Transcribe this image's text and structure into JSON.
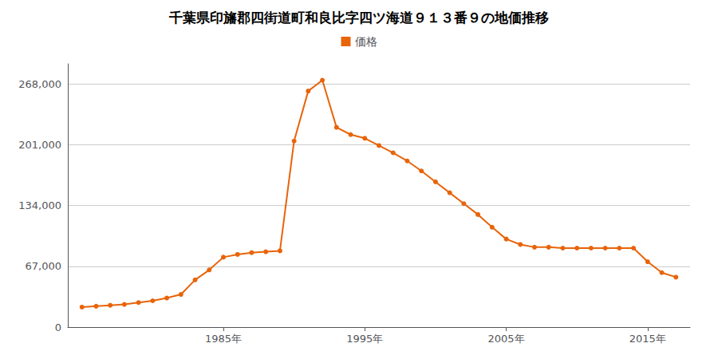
{
  "chart_data": {
    "type": "line",
    "title": "千葉県印旛郡四街道町和良比字四ツ海道９１３番９の地価推移",
    "x": [
      1975,
      1976,
      1977,
      1978,
      1979,
      1980,
      1981,
      1982,
      1983,
      1984,
      1985,
      1986,
      1987,
      1988,
      1989,
      1990,
      1991,
      1992,
      1993,
      1994,
      1995,
      1996,
      1997,
      1998,
      1999,
      2000,
      2001,
      2002,
      2003,
      2004,
      2005,
      2006,
      2007,
      2008,
      2009,
      2010,
      2011,
      2012,
      2013,
      2014,
      2015,
      2016,
      2017
    ],
    "series": [
      {
        "name": "価格",
        "color": "#e8640a",
        "marker": "circle",
        "values": [
          22000,
          23000,
          24000,
          25000,
          27000,
          29000,
          32000,
          36000,
          52000,
          63000,
          77000,
          80000,
          82000,
          83000,
          84000,
          205000,
          260000,
          272000,
          220000,
          212000,
          208000,
          200000,
          192000,
          183000,
          172000,
          160000,
          148000,
          136000,
          124000,
          110000,
          97000,
          91000,
          88000,
          88000,
          87000,
          87000,
          87000,
          87000,
          87000,
          87000,
          72000,
          60000,
          55000
        ]
      }
    ],
    "xlim": [
      1974,
      2018
    ],
    "xticks": [
      {
        "value": 1985,
        "label": "1985年"
      },
      {
        "value": 1995,
        "label": "1995年"
      },
      {
        "value": 2005,
        "label": "2005年"
      },
      {
        "value": 2015,
        "label": "2015年"
      }
    ],
    "ylim": [
      0,
      290000
    ],
    "yticks": [
      0,
      {
        "value": 67000,
        "label": "67,000"
      },
      {
        "value": 134000,
        "label": "134,000"
      },
      {
        "value": 201000,
        "label": "201,000"
      },
      {
        "value": 268000,
        "label": "268,000"
      }
    ],
    "grid": true,
    "legend": "top"
  }
}
